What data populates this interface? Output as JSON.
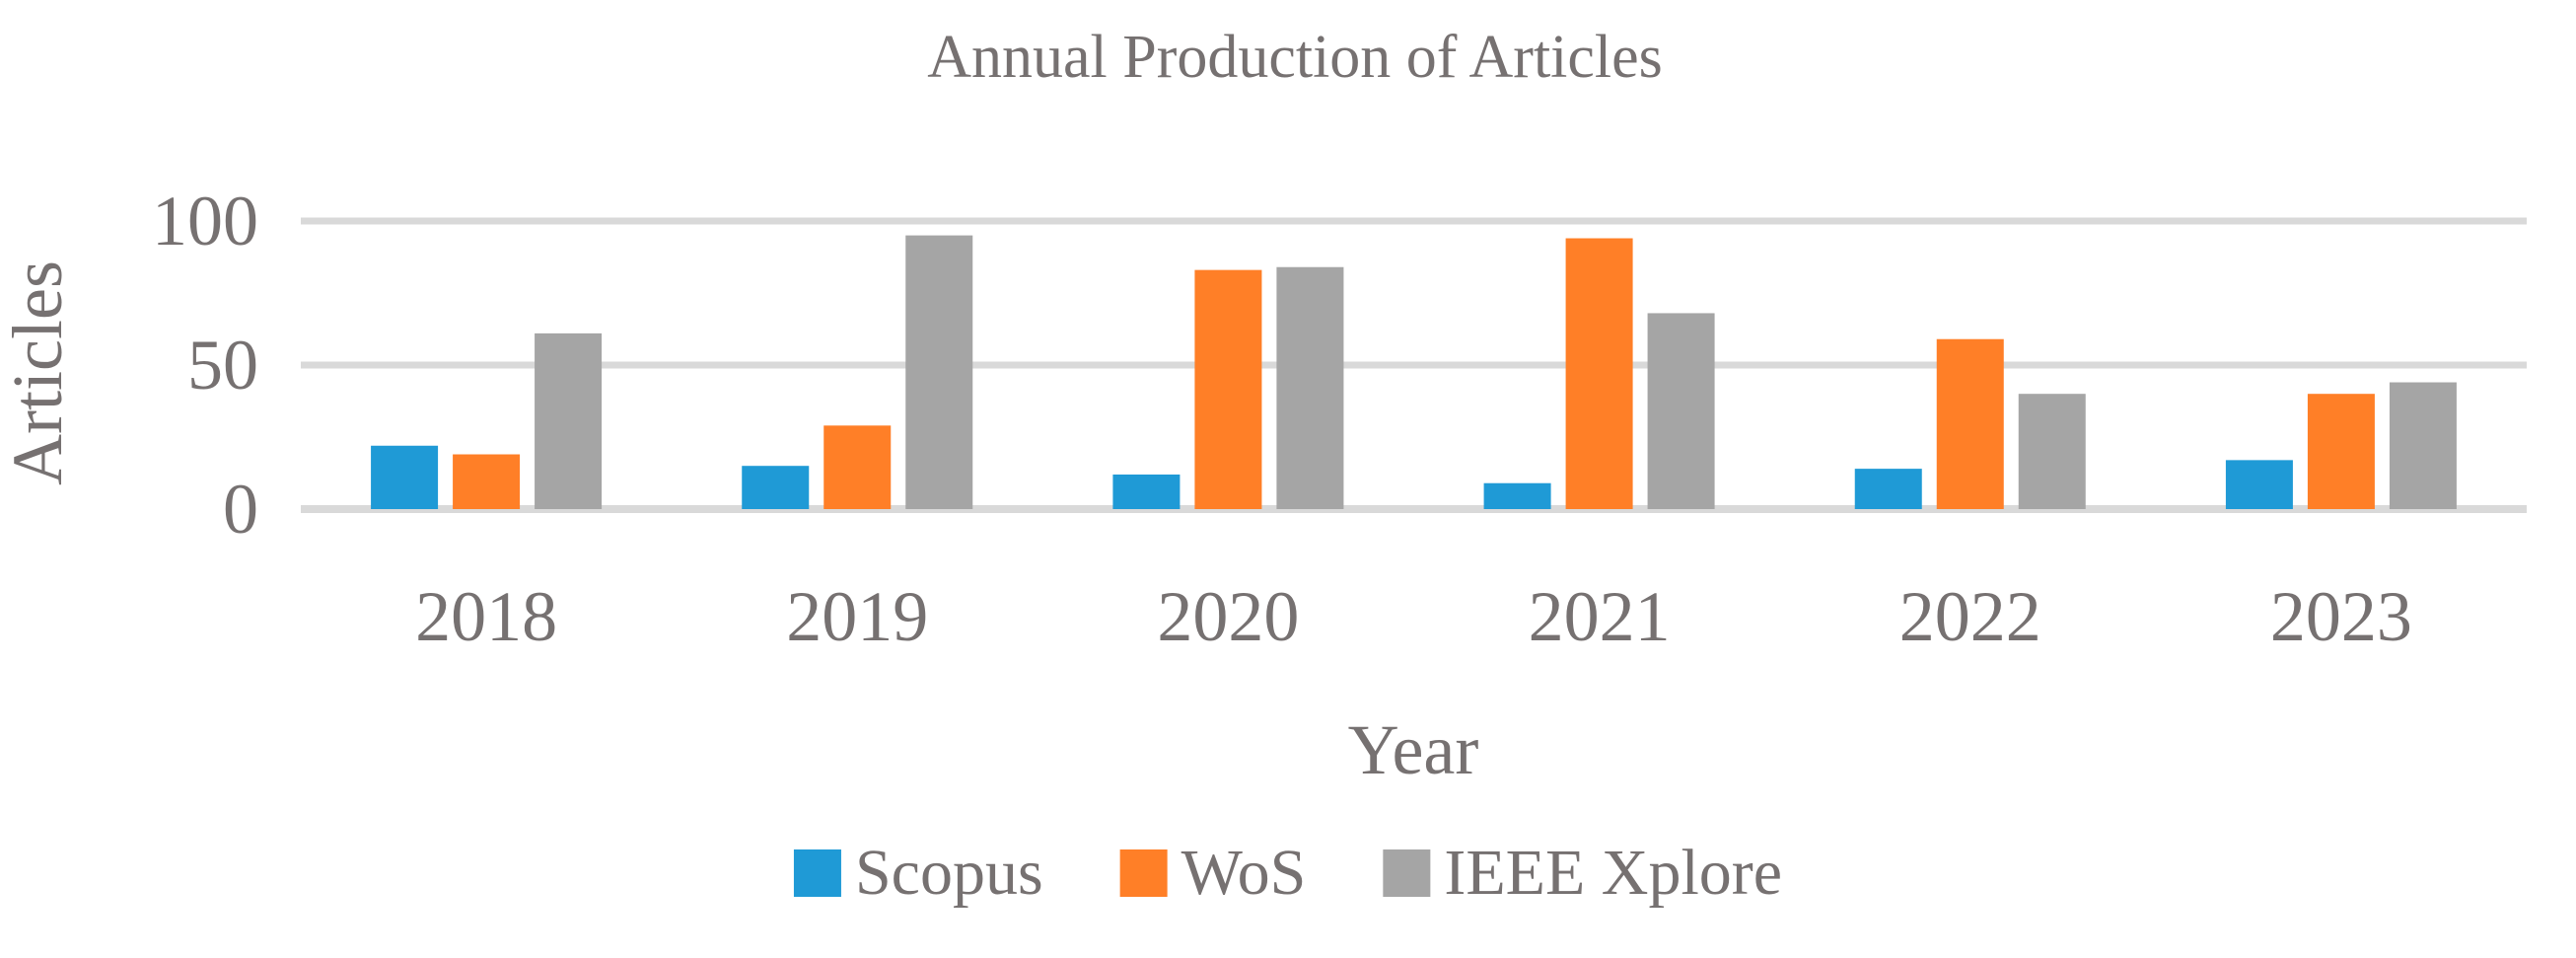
{
  "chart_data": {
    "type": "bar",
    "title": "Annual Production of Articles",
    "xlabel": "Year",
    "ylabel": "Articles",
    "categories": [
      "2018",
      "2019",
      "2020",
      "2021",
      "2022",
      "2023"
    ],
    "series": [
      {
        "name": "Scopus",
        "color": "#1f9ad6",
        "values": [
          22,
          15,
          12,
          9,
          14,
          17
        ]
      },
      {
        "name": "WoS",
        "color": "#ff7f27",
        "values": [
          19,
          29,
          83,
          94,
          59,
          40
        ]
      },
      {
        "name": "IEEE Xplore",
        "color": "#a5a5a5",
        "values": [
          61,
          95,
          84,
          68,
          40,
          44
        ]
      }
    ],
    "yticks": [
      "0",
      "50",
      "100"
    ],
    "ylim": [
      0,
      100
    ],
    "grid": true,
    "legend": "bottom"
  }
}
